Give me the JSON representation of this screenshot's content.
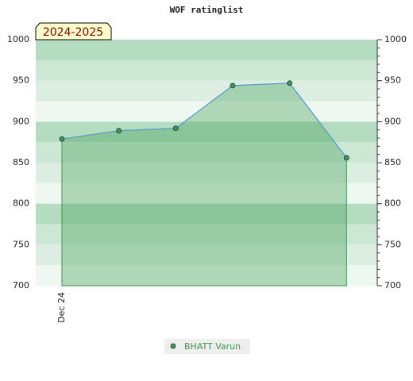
{
  "chart_data": {
    "type": "area",
    "title": "WOF ratinglist",
    "annotation": "2024-2025",
    "categories": [
      "Dec 24",
      null,
      null,
      null,
      null,
      null
    ],
    "series": [
      {
        "name": "BHATT Varun",
        "color": "#3c9a50",
        "line_color": "#5b9bd5",
        "values": [
          879,
          889,
          892,
          944,
          947,
          856
        ]
      }
    ],
    "ylim": [
      700,
      1000
    ],
    "yticks": [
      700,
      750,
      800,
      850,
      900,
      950,
      1000
    ],
    "right_axis": true,
    "legend": "bottom"
  }
}
